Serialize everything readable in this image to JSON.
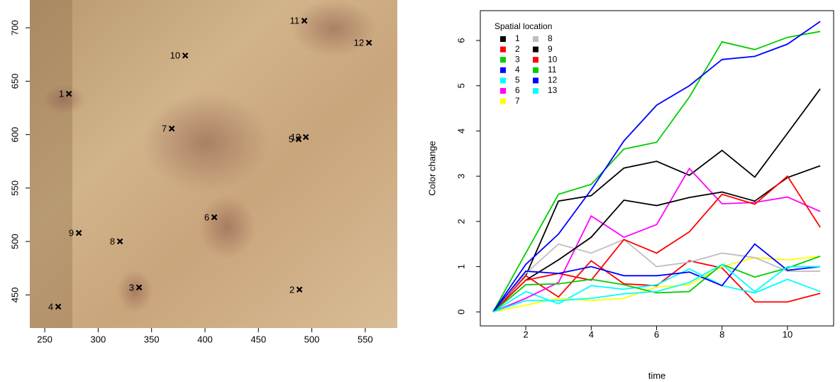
{
  "chart_data": [
    {
      "type": "scatter",
      "labels": [
        "1",
        "2",
        "3",
        "4",
        "5",
        "6",
        "7",
        "8",
        "9",
        "10",
        "11",
        "12",
        "13"
      ],
      "x": [
        272.6,
        488.4,
        338.3,
        262.6,
        487.7,
        408.7,
        368.9,
        320.4,
        281.9,
        381.5,
        493.0,
        553.5,
        494.4
      ],
      "y": [
        638.2,
        455.0,
        457.0,
        439.0,
        595.7,
        522.7,
        605.7,
        500.1,
        508.0,
        674.0,
        706.6,
        686.0,
        597.7
      ],
      "xlim": [
        236,
        580
      ],
      "ylim": [
        419,
        726
      ],
      "xticks": [
        250,
        300,
        350,
        400,
        450,
        500,
        550
      ],
      "yticks": [
        450,
        500,
        550,
        600,
        650,
        700
      ],
      "color": "#000000"
    },
    {
      "type": "line",
      "xlabel": "time",
      "ylabel": "Color change",
      "legend_title": "Spatial location",
      "x": [
        1,
        2,
        3,
        4,
        5,
        6,
        7,
        8,
        9,
        10,
        11
      ],
      "xlim": [
        0.61,
        11.41
      ],
      "ylim": [
        -0.31,
        6.66
      ],
      "xticks": [
        2,
        4,
        6,
        8,
        10
      ],
      "yticks": [
        0,
        1,
        2,
        3,
        4,
        5,
        6
      ],
      "series": [
        {
          "name": "1",
          "color": "#000000",
          "values": [
            0,
            0.8,
            2.45,
            2.57,
            3.18,
            3.33,
            3.02,
            3.57,
            2.98,
            3.95,
            4.93
          ]
        },
        {
          "name": "2",
          "color": "#ff0000",
          "values": [
            0,
            0.8,
            0.33,
            1.13,
            0.62,
            0.58,
            1.13,
            0.97,
            0.22,
            0.22,
            0.41
          ]
        },
        {
          "name": "3",
          "color": "#00cd00",
          "values": [
            0,
            1.3,
            2.6,
            2.82,
            3.6,
            3.75,
            4.75,
            5.97,
            5.8,
            6.07,
            6.2
          ]
        },
        {
          "name": "4",
          "color": "#0000ff",
          "values": [
            0,
            1.05,
            1.72,
            2.7,
            3.78,
            4.57,
            5.0,
            5.58,
            5.65,
            5.92,
            6.42
          ]
        },
        {
          "name": "5",
          "color": "#00ffff",
          "values": [
            0,
            0.45,
            0.18,
            0.58,
            0.5,
            0.6,
            0.95,
            0.58,
            0.42,
            0.72,
            0.45
          ]
        },
        {
          "name": "6",
          "color": "#ff00ff",
          "values": [
            0,
            0.3,
            0.65,
            2.12,
            1.65,
            1.93,
            3.17,
            2.39,
            2.42,
            2.54,
            2.22
          ]
        },
        {
          "name": "7",
          "color": "#ffff00",
          "values": [
            0,
            0.15,
            0.3,
            0.25,
            0.3,
            0.55,
            0.6,
            1.0,
            1.2,
            1.15,
            1.23
          ]
        },
        {
          "name": "8",
          "color": "#bebebe",
          "values": [
            0,
            0.85,
            1.5,
            1.3,
            1.6,
            1.0,
            1.1,
            1.3,
            1.2,
            0.9,
            0.9
          ]
        },
        {
          "name": "9",
          "color": "#000000",
          "values": [
            0,
            0.7,
            1.15,
            1.65,
            2.47,
            2.35,
            2.53,
            2.65,
            2.45,
            2.97,
            3.23
          ]
        },
        {
          "name": "10",
          "color": "#ff0000",
          "values": [
            0,
            0.7,
            0.85,
            0.7,
            1.6,
            1.3,
            1.77,
            2.6,
            2.38,
            3.0,
            1.87
          ]
        },
        {
          "name": "11",
          "color": "#00cd00",
          "values": [
            0,
            0.6,
            0.62,
            0.72,
            0.6,
            0.42,
            0.45,
            1.05,
            0.77,
            0.97,
            1.23
          ]
        },
        {
          "name": "12",
          "color": "#0000ff",
          "values": [
            0,
            0.9,
            0.85,
            1.0,
            0.8,
            0.8,
            0.88,
            0.58,
            1.5,
            0.92,
            1.0
          ]
        },
        {
          "name": "13",
          "color": "#00ffff",
          "values": [
            0,
            0.25,
            0.25,
            0.3,
            0.4,
            0.45,
            0.65,
            1.05,
            0.45,
            1.0,
            1.0
          ]
        }
      ]
    }
  ]
}
